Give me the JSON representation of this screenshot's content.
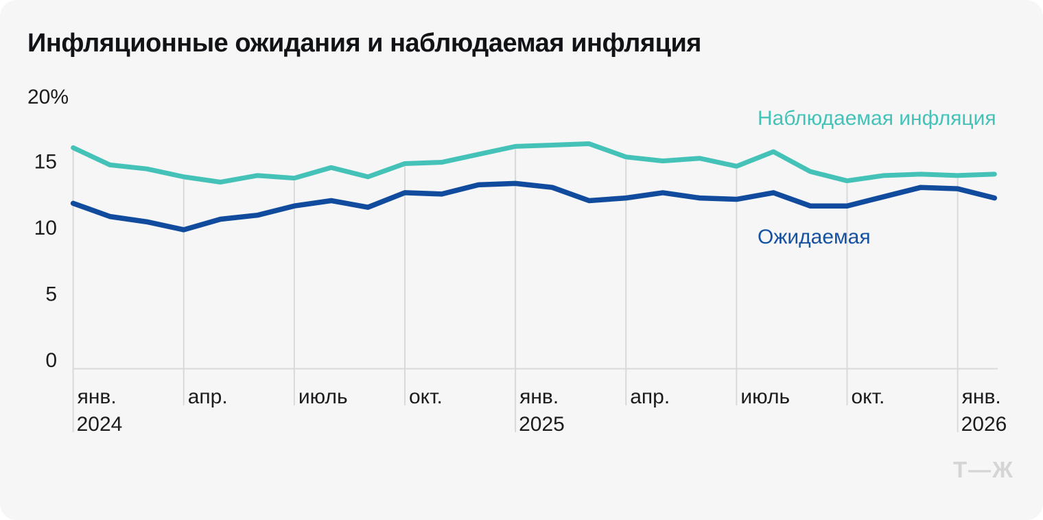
{
  "card": {
    "logo": "Т—Ж"
  },
  "chart_data": {
    "type": "line",
    "title": "Инфляционные ожидания и наблюдаемая инфляция",
    "x_months": [
      "2024-01",
      "2024-02",
      "2024-03",
      "2024-04",
      "2024-05",
      "2024-06",
      "2024-07",
      "2024-08",
      "2024-09",
      "2024-10",
      "2024-11",
      "2024-12",
      "2025-01",
      "2025-02",
      "2025-03",
      "2025-04",
      "2025-05",
      "2025-06",
      "2025-07",
      "2025-08",
      "2025-09",
      "2025-10",
      "2025-11",
      "2025-12",
      "2026-01",
      "2026-02"
    ],
    "x_ticks": [
      {
        "index": 0,
        "label": "янв.",
        "year": "2024"
      },
      {
        "index": 3,
        "label": "апр.",
        "year": ""
      },
      {
        "index": 6,
        "label": "июль",
        "year": ""
      },
      {
        "index": 9,
        "label": "окт.",
        "year": ""
      },
      {
        "index": 12,
        "label": "янв.",
        "year": "2025"
      },
      {
        "index": 15,
        "label": "апр.",
        "year": ""
      },
      {
        "index": 18,
        "label": "июль",
        "year": ""
      },
      {
        "index": 21,
        "label": "окт.",
        "year": ""
      },
      {
        "index": 24,
        "label": "янв.",
        "year": "2026"
      }
    ],
    "y_axis": {
      "top_label": "20%",
      "ticks": [
        15,
        10,
        5,
        0
      ],
      "range": [
        0,
        20
      ],
      "grid": "vertical-only"
    },
    "series": [
      {
        "name": "Наблюдаемая инфляция",
        "color": "#45c2b8",
        "values": [
          16.0,
          14.7,
          14.4,
          13.8,
          13.4,
          13.9,
          13.7,
          14.5,
          13.8,
          14.8,
          14.9,
          15.5,
          16.1,
          16.2,
          16.3,
          15.3,
          15.0,
          15.2,
          14.6,
          15.7,
          14.2,
          13.5,
          13.9,
          14.0,
          13.9,
          14.0
        ]
      },
      {
        "name": "Ожидаемая",
        "color": "#114b9e",
        "values": [
          11.8,
          10.8,
          10.4,
          9.8,
          10.6,
          10.9,
          11.6,
          12.0,
          11.5,
          12.6,
          12.5,
          13.2,
          13.3,
          13.0,
          12.0,
          12.2,
          12.6,
          12.2,
          12.1,
          12.6,
          11.6,
          11.6,
          12.3,
          13.0,
          12.9,
          12.2
        ]
      }
    ],
    "legend_position": "inline-right",
    "colors": {
      "grid": "#d9d9d9",
      "axis_text": "#1c1c1e",
      "background": "#f6f6f7"
    }
  }
}
